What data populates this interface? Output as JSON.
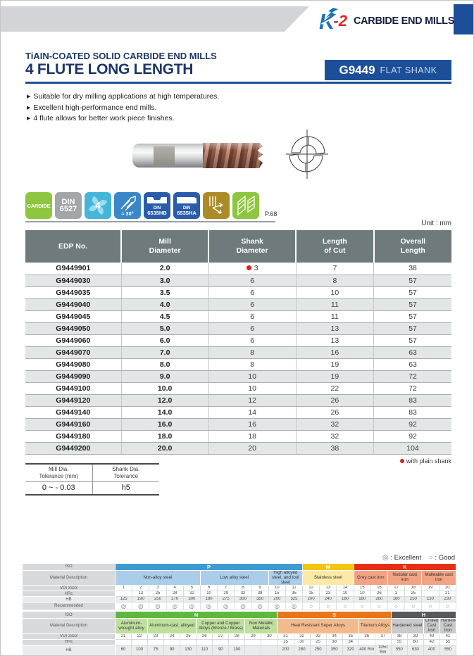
{
  "brand": {
    "k": "K",
    "two": "-2",
    "suffix": "CARBIDE END MILLS"
  },
  "title": {
    "subtitle": "TiAIN-COATED SOLID CARBIDE END MILLS",
    "main": "4 FLUTE LONG LENGTH",
    "series_code": "G9449",
    "series_type": "FLAT SHANK"
  },
  "features": [
    "Suitable for dry milling applications at high temperatures.",
    "Excellent high-performance end mills.",
    "4 flute allows for better work piece finishes."
  ],
  "icons": {
    "carbide": "CARBIDE",
    "din6527_line1": "DIN",
    "din6527_line2": "6527",
    "flute_count": "4",
    "helix_angle": "≈ 30°",
    "din6535hb_line1": "DIN",
    "din6535hb_line2": "6535HB",
    "din6535ha_line1": "DIN",
    "din6535ha_line2": "6535HA",
    "page_ref": "P.68"
  },
  "unit_label": "Unit : mm",
  "main_table": {
    "columns": [
      "EDP No.",
      "Mill\nDiameter",
      "Shank\nDiameter",
      "Length\nof Cut",
      "Overall\nLength"
    ],
    "rows": [
      {
        "edp": "G9449901",
        "mill": "2.0",
        "shank": "3",
        "plain_shank_dot": true,
        "cut": "7",
        "overall": "38"
      },
      {
        "edp": "G9449030",
        "mill": "3.0",
        "shank": "6",
        "plain_shank_dot": false,
        "cut": "8",
        "overall": "57"
      },
      {
        "edp": "G9449035",
        "mill": "3.5",
        "shank": "6",
        "plain_shank_dot": false,
        "cut": "10",
        "overall": "57"
      },
      {
        "edp": "G9449040",
        "mill": "4.0",
        "shank": "6",
        "plain_shank_dot": false,
        "cut": "11",
        "overall": "57"
      },
      {
        "edp": "G9449045",
        "mill": "4.5",
        "shank": "6",
        "plain_shank_dot": false,
        "cut": "11",
        "overall": "57"
      },
      {
        "edp": "G9449050",
        "mill": "5.0",
        "shank": "6",
        "plain_shank_dot": false,
        "cut": "13",
        "overall": "57"
      },
      {
        "edp": "G9449060",
        "mill": "6.0",
        "shank": "6",
        "plain_shank_dot": false,
        "cut": "13",
        "overall": "57"
      },
      {
        "edp": "G9449070",
        "mill": "7.0",
        "shank": "8",
        "plain_shank_dot": false,
        "cut": "16",
        "overall": "63"
      },
      {
        "edp": "G9449080",
        "mill": "8.0",
        "shank": "8",
        "plain_shank_dot": false,
        "cut": "19",
        "overall": "63"
      },
      {
        "edp": "G9449090",
        "mill": "9.0",
        "shank": "10",
        "plain_shank_dot": false,
        "cut": "19",
        "overall": "72"
      },
      {
        "edp": "G9449100",
        "mill": "10.0",
        "shank": "10",
        "plain_shank_dot": false,
        "cut": "22",
        "overall": "72"
      },
      {
        "edp": "G9449120",
        "mill": "12.0",
        "shank": "12",
        "plain_shank_dot": false,
        "cut": "26",
        "overall": "83"
      },
      {
        "edp": "G9449140",
        "mill": "14.0",
        "shank": "14",
        "plain_shank_dot": false,
        "cut": "26",
        "overall": "83"
      },
      {
        "edp": "G9449160",
        "mill": "16.0",
        "shank": "16",
        "plain_shank_dot": false,
        "cut": "32",
        "overall": "92"
      },
      {
        "edp": "G9449180",
        "mill": "18.0",
        "shank": "18",
        "plain_shank_dot": false,
        "cut": "32",
        "overall": "92"
      },
      {
        "edp": "G9449200",
        "mill": "20.0",
        "shank": "20",
        "plain_shank_dot": false,
        "cut": "38",
        "overall": "104"
      }
    ],
    "footnote": "with plain shank"
  },
  "tolerance_table": {
    "columns": [
      "Mill Dia.\nTolerance (mm)",
      "Shank Dia.\nTolerance"
    ],
    "values": [
      "0 ~ - 0.03",
      "h5"
    ]
  },
  "legend": {
    "excellent_symbol": "◎",
    "excellent_label": "Excellent",
    "good_symbol": "○",
    "good_label": "Good"
  },
  "application_chart": {
    "row_labels": [
      "ISO",
      "Material Description",
      "VDI 3323",
      "HRc",
      "HB",
      "Recommended"
    ],
    "sections": [
      {
        "iso_groups": [
          {
            "label": "P",
            "color": "#3d9bd4",
            "span": 11
          },
          {
            "label": "M",
            "color": "#f2c50f",
            "span": 3
          },
          {
            "label": "K",
            "color": "#e62e17",
            "span": 6
          }
        ],
        "materials": [
          {
            "label": "Non-alloy steel",
            "span": 5,
            "color": "#aacde9"
          },
          {
            "label": "Low alloy steel",
            "span": 4,
            "color": "#aacde9"
          },
          {
            "label": "High alloyed steel, and tool steel",
            "span": 2,
            "color": "#aacde9"
          },
          {
            "label": "Stainless steel",
            "span": 3,
            "color": "#fbe9a5"
          },
          {
            "label": "Grey cast iron",
            "span": 2,
            "color": "#f2a384"
          },
          {
            "label": "Nodular cast iron",
            "span": 2,
            "color": "#f2a384"
          },
          {
            "label": "Malleable cast iron",
            "span": 2,
            "color": "#f2a384"
          }
        ],
        "vdi": [
          "1",
          "2",
          "3",
          "4",
          "5",
          "6",
          "7",
          "8",
          "9",
          "10",
          "11",
          "12",
          "13",
          "14",
          "15",
          "16",
          "17",
          "18",
          "19",
          "20"
        ],
        "hrc": [
          "",
          "13",
          "25",
          "28",
          "32",
          "10",
          "29",
          "32",
          "38",
          "15",
          "35",
          "15",
          "23",
          "10",
          "10",
          "26",
          "3",
          "25",
          "",
          "21"
        ],
        "hb": [
          "125",
          "190",
          "250",
          "270",
          "300",
          "180",
          "275",
          "300",
          "350",
          "200",
          "325",
          "200",
          "240",
          "180",
          "180",
          "260",
          "160",
          "250",
          "130",
          "230"
        ],
        "recommended": [
          "E",
          "E",
          "E",
          "E",
          "E",
          "E",
          "E",
          "E",
          "E",
          "E",
          "E",
          "G",
          "G",
          "G",
          "G",
          "G",
          "G",
          "G",
          "G",
          "G"
        ]
      },
      {
        "iso_groups": [
          {
            "label": "N",
            "color": "#5eb83d",
            "span": 10
          },
          {
            "label": "S",
            "color": "#e97519",
            "span": 7
          },
          {
            "label": "H",
            "color": "#57595c",
            "span": 4
          }
        ],
        "materials": [
          {
            "label": "Aluminum-wrought alloy",
            "span": 2,
            "color": "#bfdf9e"
          },
          {
            "label": "Aluminum-cast, alloyed",
            "span": 3,
            "color": "#bfdf9e"
          },
          {
            "label": "Copper and Copper Alloys (Bronze / Brass)",
            "span": 3,
            "color": "#bfdf9e"
          },
          {
            "label": "Non Metallic Materials",
            "span": 2,
            "color": "#bfdf9e"
          },
          {
            "label": "Heat Resistant Super Alloys",
            "span": 5,
            "color": "#f3bb8d"
          },
          {
            "label": "Titanium Alloys",
            "span": 2,
            "color": "#f3bb8d"
          },
          {
            "label": "Hardened steel",
            "span": 2,
            "color": "#c9cacb"
          },
          {
            "label": "Chilled Cast Iron",
            "span": 1,
            "color": "#c9cacb"
          },
          {
            "label": "Hardened Cast Iron",
            "span": 1,
            "color": "#c9cacb"
          }
        ],
        "vdi": [
          "21",
          "22",
          "23",
          "24",
          "25",
          "26",
          "27",
          "28",
          "29",
          "30",
          "31",
          "32",
          "33",
          "34",
          "35",
          "36",
          "37",
          "38",
          "39",
          "40",
          "41"
        ],
        "hrc": [
          "",
          "",
          "",
          "",
          "",
          "",
          "",
          "",
          "",
          "",
          "15",
          "30",
          "25",
          "38",
          "34",
          "",
          "",
          "55",
          "60",
          "42",
          "55"
        ],
        "hb": [
          "60",
          "100",
          "75",
          "90",
          "130",
          "110",
          "90",
          "100",
          "",
          "",
          "200",
          "280",
          "250",
          "350",
          "320",
          "400 Rm",
          "1050 Rm",
          "550",
          "630",
          "400",
          "550"
        ],
        "recommended": [
          "G",
          "G",
          "G",
          "G",
          "G",
          "G",
          "G",
          "G",
          "G",
          "",
          "G",
          "G",
          "G",
          "G",
          "G",
          "G",
          "G",
          "",
          "",
          "G",
          ""
        ]
      }
    ]
  }
}
